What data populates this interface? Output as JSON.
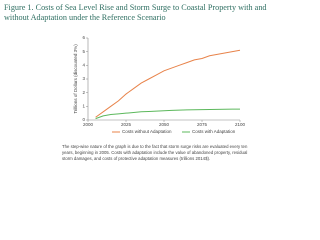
{
  "chart_data": {
    "type": "line",
    "title": "Figure 1. Costs of Sea Level Rise and Storm Surge to Coastal Property with and without Adaptation under the Reference Scenario",
    "y_label": "Trillions of Dollars (discounted 3%)",
    "caption": "The step-wise nature of the graph is due to the fact that storm surge risks are evaluated every ten years, beginning in 2005. Costs with adaptation include the value of abandoned property, residual storm damages, and costs of protective adaptation measures (trillions 2014$).",
    "x": [
      2005,
      2010,
      2015,
      2020,
      2025,
      2030,
      2035,
      2040,
      2045,
      2050,
      2055,
      2060,
      2065,
      2070,
      2075,
      2080,
      2085,
      2090,
      2095,
      2100
    ],
    "series": [
      {
        "name": "Costs without Adaptation",
        "color": "#e8834a",
        "values": [
          0.2,
          0.6,
          1.0,
          1.4,
          1.9,
          2.3,
          2.7,
          3.0,
          3.3,
          3.6,
          3.8,
          4.0,
          4.2,
          4.4,
          4.5,
          4.7,
          4.8,
          4.9,
          5.0,
          5.1
        ]
      },
      {
        "name": "Costs with Adaptation",
        "color": "#5cb85c",
        "values": [
          0.1,
          0.3,
          0.4,
          0.45,
          0.5,
          0.55,
          0.6,
          0.62,
          0.65,
          0.68,
          0.7,
          0.72,
          0.74,
          0.75,
          0.76,
          0.77,
          0.78,
          0.79,
          0.8,
          0.8
        ]
      }
    ],
    "xlim": [
      2000,
      2100
    ],
    "xticks": [
      2000,
      2025,
      2050,
      2075,
      2100
    ],
    "ylim": [
      0,
      6
    ],
    "yticks": [
      0,
      1,
      2,
      3,
      4,
      5,
      6
    ]
  }
}
